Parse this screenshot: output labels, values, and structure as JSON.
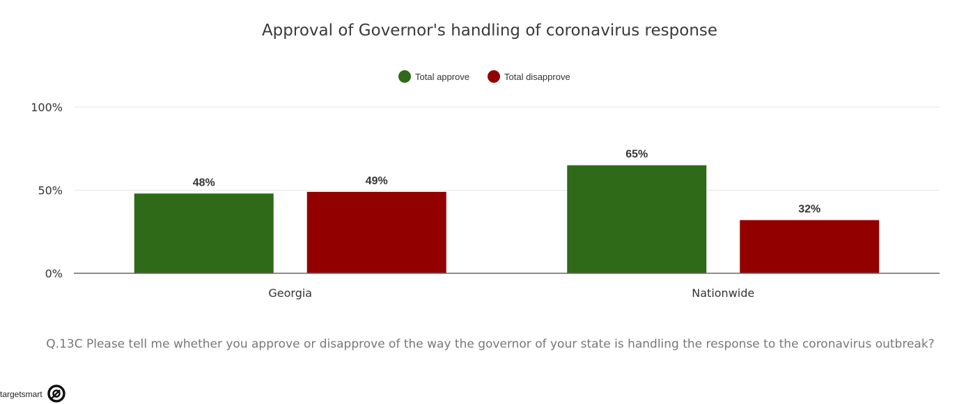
{
  "chart_data": {
    "type": "bar",
    "title": "Approval of Governor's handling of coronavirus response",
    "categories": [
      "Georgia",
      "Nationwide"
    ],
    "series": [
      {
        "name": "Total approve",
        "values": [
          48,
          65
        ],
        "labels": [
          "48%",
          "65%"
        ],
        "color": "#2e6a17"
      },
      {
        "name": "Total disapprove",
        "values": [
          49,
          32
        ],
        "labels": [
          "49%",
          "32%"
        ],
        "color": "#920000"
      }
    ],
    "ylim": [
      0,
      100
    ],
    "yticks": [
      {
        "value": 0,
        "label": "0%"
      },
      {
        "value": 50,
        "label": "50%"
      },
      {
        "value": 100,
        "label": "100%"
      }
    ],
    "grid": true,
    "legend_position": "top-center",
    "xlabel": "",
    "ylabel": ""
  },
  "footer": {
    "question": "Q.13C Please tell me whether you approve or disapprove of the way the governor of your state is handling the response to the coronavirus outbreak?"
  },
  "brand": {
    "name": "targetsmart",
    "icon": "targetsmart-logo-icon"
  }
}
